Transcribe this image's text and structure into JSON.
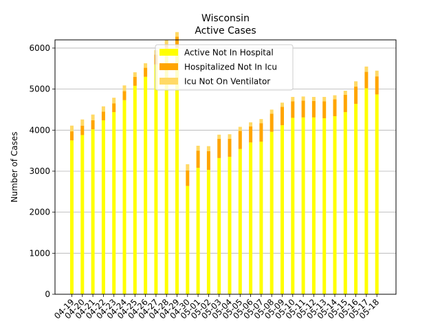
{
  "chart_data": {
    "type": "bar",
    "stacked": true,
    "title": "Wisconsin",
    "subtitle": "Active Cases",
    "xlabel": "",
    "ylabel": "Number of Cases",
    "ylim": [
      0,
      6200
    ],
    "yticks": [
      0,
      1000,
      2000,
      3000,
      4000,
      5000,
      6000
    ],
    "grid": "horizontal",
    "legend_position": "top-center",
    "categories": [
      "04-19",
      "04-20",
      "04-21",
      "04-22",
      "04-23",
      "04-24",
      "04-25",
      "04-26",
      "04-27",
      "04-28",
      "04-29",
      "04-30",
      "05-01",
      "05-02",
      "05-03",
      "05-04",
      "05-05",
      "05-06",
      "05-07",
      "05-08",
      "05-09",
      "05-10",
      "05-11",
      "05-12",
      "05-13",
      "05-14",
      "05-15",
      "05-16",
      "05-17",
      "05-18"
    ],
    "series": [
      {
        "name": "Active Not In Hospital",
        "color": "#ffff00",
        "values": [
          3750,
          3880,
          4020,
          4240,
          4440,
          4730,
          5080,
          5300,
          5600,
          5820,
          6000,
          2640,
          3080,
          3030,
          3320,
          3350,
          3540,
          3700,
          3720,
          3960,
          4120,
          4300,
          4310,
          4310,
          4290,
          4340,
          4440,
          4640,
          5020,
          4870
        ]
      },
      {
        "name": "Hospitalized Not In Icu",
        "color": "#ffa500",
        "values": [
          220,
          230,
          220,
          210,
          210,
          220,
          220,
          220,
          240,
          260,
          280,
          380,
          420,
          460,
          470,
          440,
          440,
          390,
          450,
          440,
          450,
          400,
          410,
          400,
          410,
          410,
          420,
          420,
          400,
          440
        ]
      },
      {
        "name": "Icu Not On Ventilator",
        "color": "#ffd966",
        "values": [
          140,
          150,
          140,
          130,
          140,
          140,
          110,
          110,
          110,
          110,
          110,
          150,
          120,
          120,
          100,
          110,
          100,
          100,
          100,
          100,
          100,
          110,
          100,
          100,
          110,
          100,
          100,
          130,
          130,
          140
        ]
      }
    ]
  }
}
